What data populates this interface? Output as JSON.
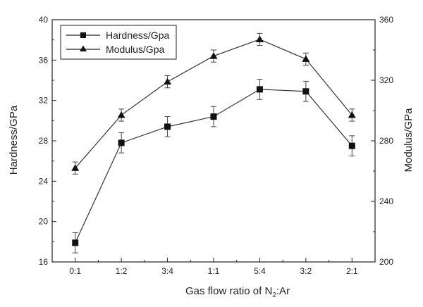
{
  "chart_data": {
    "type": "line",
    "title": "",
    "xlabel_main": "Gas flow ratio of N",
    "xlabel_sub": "2",
    "xlabel_tail": ":Ar",
    "ylabel_left": "Hardness/GPa",
    "ylabel_right": "Modulus/GPa",
    "categories": [
      "0:1",
      "1:2",
      "3:4",
      "1:1",
      "5:4",
      "3:2",
      "2:1"
    ],
    "y_left": {
      "min": 16,
      "max": 40,
      "ticks": [
        16,
        20,
        24,
        28,
        32,
        36,
        40
      ]
    },
    "y_right": {
      "min": 200,
      "max": 360,
      "ticks": [
        200,
        240,
        280,
        320,
        360
      ]
    },
    "legend_position": "top-left",
    "grid": false,
    "series": [
      {
        "name": "Hardness/Gpa",
        "axis": "left",
        "marker": "square",
        "values": [
          17.9,
          27.8,
          29.4,
          30.4,
          33.1,
          32.9,
          27.5
        ],
        "errors": [
          1.0,
          1.0,
          1.0,
          1.0,
          1.0,
          1.0,
          1.0
        ]
      },
      {
        "name": "Modulus/Gpa",
        "axis": "right",
        "marker": "triangle",
        "values": [
          262,
          297,
          319,
          336,
          347,
          334,
          297
        ],
        "errors": [
          4,
          4,
          4,
          4,
          4,
          4,
          4
        ]
      }
    ]
  }
}
